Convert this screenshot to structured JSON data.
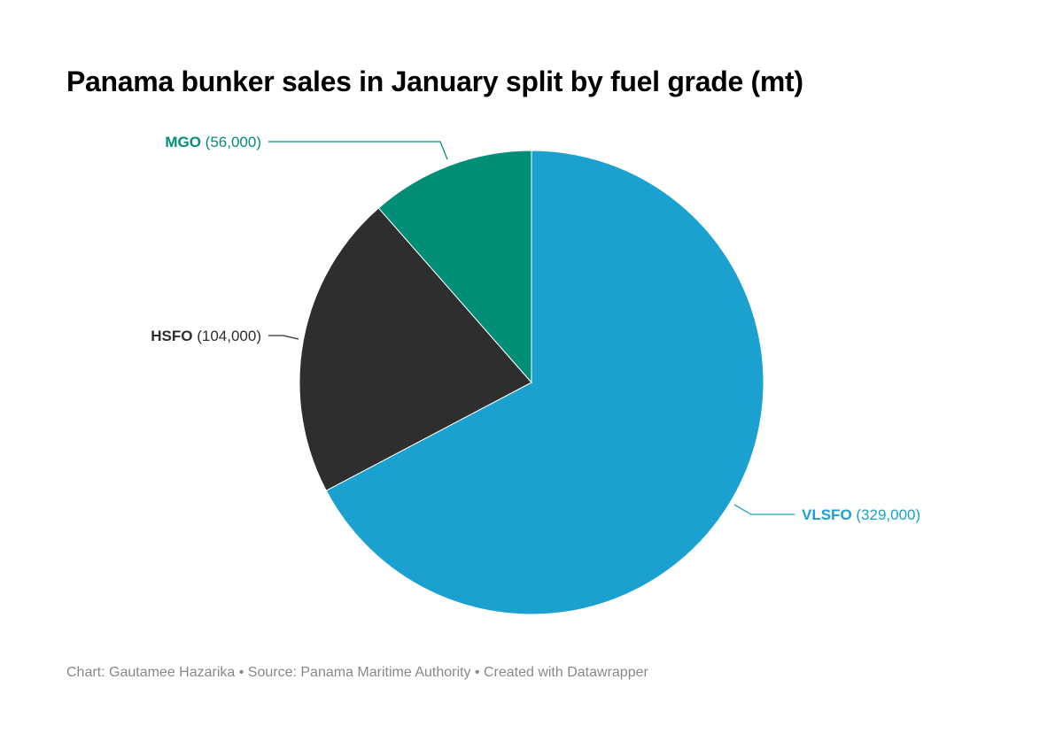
{
  "chart_data": {
    "type": "pie",
    "title": "Panama bunker sales in January split by fuel grade (mt)",
    "slices": [
      {
        "name": "VLSFO",
        "value": 329000,
        "value_label": "(329,000)",
        "color": "#1aa1cf"
      },
      {
        "name": "HSFO",
        "value": 104000,
        "value_label": "(104,000)",
        "color": "#2e2e2e"
      },
      {
        "name": "MGO",
        "value": 56000,
        "value_label": "(56,000)",
        "color": "#008f76"
      }
    ],
    "legend": "none",
    "labels": "outside with leader lines"
  },
  "footer": {
    "text": "Chart: Gautamee Hazarika • Source: Panama Maritime Authority • Created with Datawrapper"
  }
}
